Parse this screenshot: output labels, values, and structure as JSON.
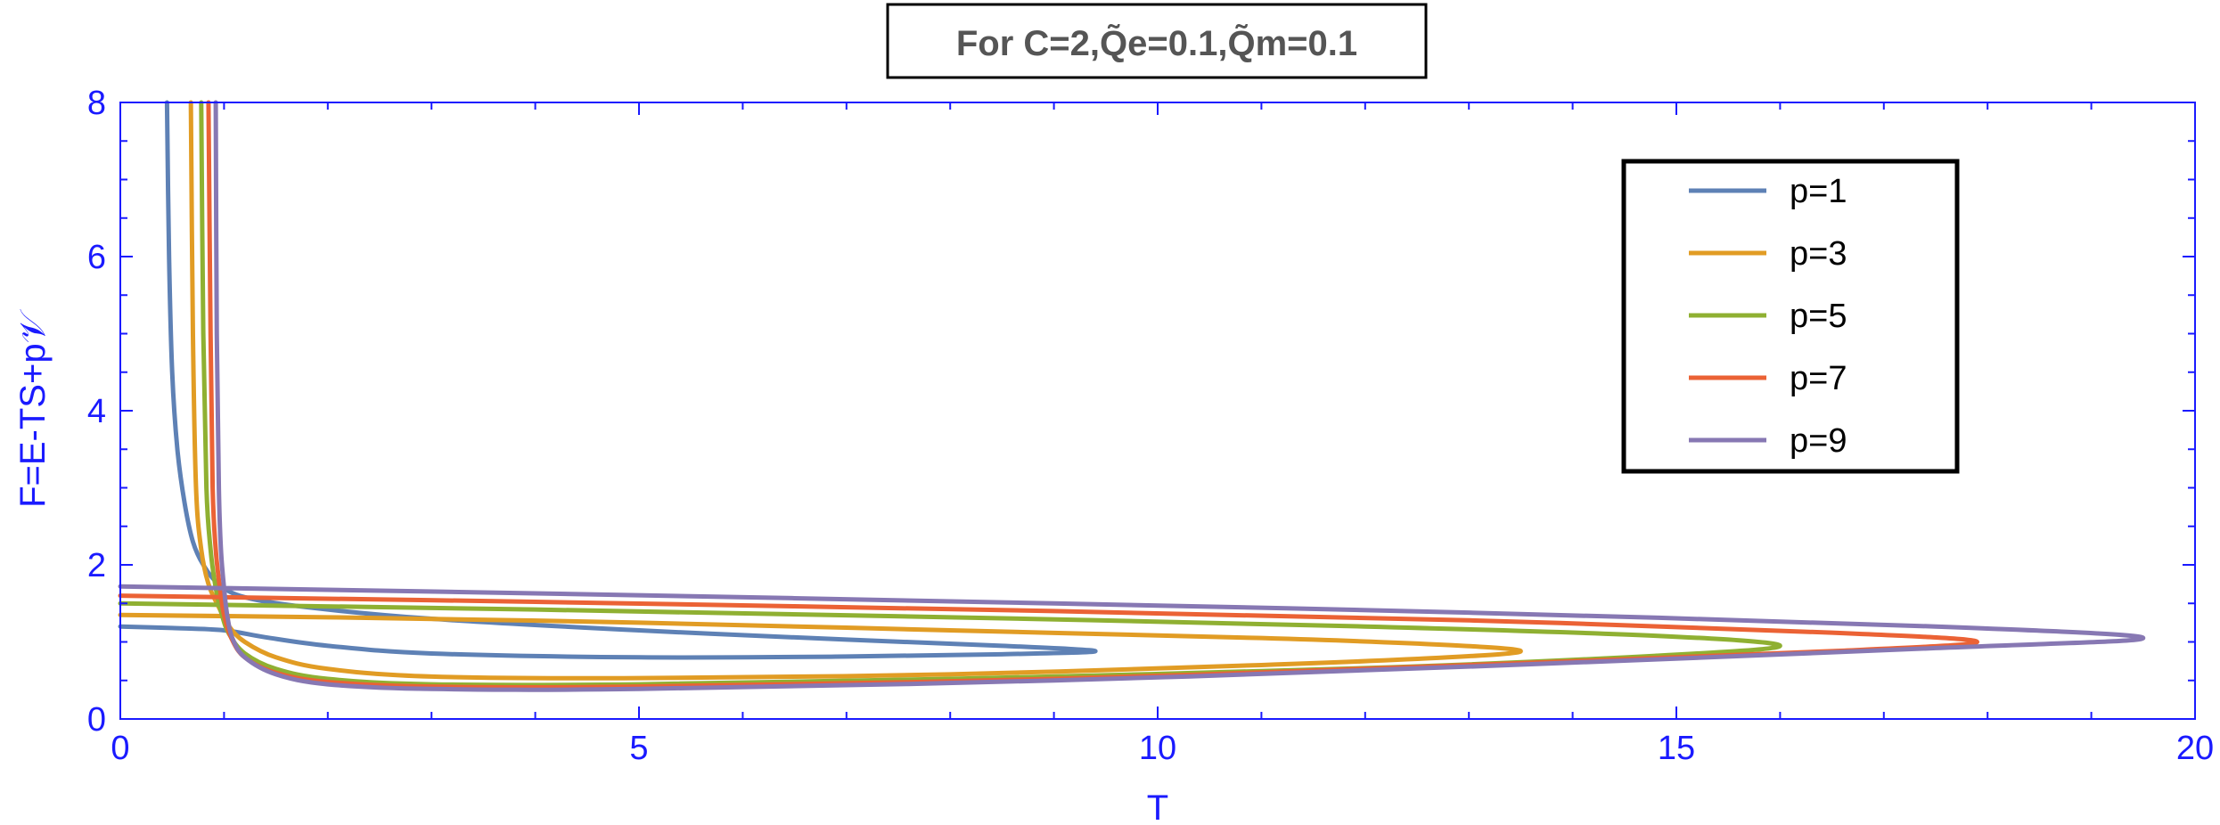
{
  "chart_data": {
    "type": "line",
    "title": "For C=2,Q̃e=0.1,Q̃m=0.1",
    "xlabel": "T",
    "ylabel": "F=E-TS+p𝒱",
    "xlim": [
      0,
      20
    ],
    "ylim": [
      0,
      8
    ],
    "xticks": [
      0,
      5,
      10,
      15,
      20
    ],
    "yticks": [
      0,
      2,
      4,
      6,
      8
    ],
    "legend_position": "top-right",
    "frame_color": "#1a1aff",
    "series": [
      {
        "name": "p=1",
        "color": "#5e81b5",
        "points": [
          [
            0.45,
            8.0
          ],
          [
            0.47,
            6.0
          ],
          [
            0.5,
            4.5
          ],
          [
            0.55,
            3.5
          ],
          [
            0.62,
            2.8
          ],
          [
            0.7,
            2.3
          ],
          [
            0.8,
            2.0
          ],
          [
            0.95,
            1.75
          ],
          [
            1.2,
            1.58
          ],
          [
            1.8,
            1.45
          ],
          [
            3.0,
            1.3
          ],
          [
            5.0,
            1.15
          ],
          [
            7.0,
            1.03
          ],
          [
            8.5,
            0.95
          ],
          [
            9.4,
            0.88
          ],
          [
            8.5,
            0.84
          ],
          [
            7.0,
            0.81
          ],
          [
            5.0,
            0.8
          ],
          [
            3.0,
            0.85
          ],
          [
            2.0,
            0.95
          ],
          [
            1.4,
            1.06
          ],
          [
            1.0,
            1.15
          ],
          [
            0.5,
            1.18
          ],
          [
            0.0,
            1.2
          ]
        ]
      },
      {
        "name": "p=3",
        "color": "#e19c24",
        "points": [
          [
            0.68,
            8.0
          ],
          [
            0.7,
            5.0
          ],
          [
            0.73,
            3.0
          ],
          [
            0.78,
            2.2
          ],
          [
            0.85,
            1.75
          ],
          [
            0.95,
            1.45
          ],
          [
            1.05,
            1.2
          ],
          [
            1.2,
            1.0
          ],
          [
            1.5,
            0.8
          ],
          [
            2.0,
            0.65
          ],
          [
            3.0,
            0.55
          ],
          [
            5.0,
            0.53
          ],
          [
            8.0,
            0.58
          ],
          [
            11.0,
            0.7
          ],
          [
            12.8,
            0.8
          ],
          [
            13.5,
            0.88
          ],
          [
            12.8,
            0.96
          ],
          [
            11.0,
            1.05
          ],
          [
            8.0,
            1.15
          ],
          [
            5.0,
            1.25
          ],
          [
            2.0,
            1.32
          ],
          [
            0.0,
            1.35
          ]
        ]
      },
      {
        "name": "p=5",
        "color": "#8fb032",
        "points": [
          [
            0.78,
            8.0
          ],
          [
            0.8,
            5.0
          ],
          [
            0.83,
            3.0
          ],
          [
            0.87,
            2.2
          ],
          [
            0.92,
            1.7
          ],
          [
            0.98,
            1.35
          ],
          [
            1.05,
            1.1
          ],
          [
            1.2,
            0.85
          ],
          [
            1.5,
            0.65
          ],
          [
            2.0,
            0.52
          ],
          [
            3.0,
            0.45
          ],
          [
            5.0,
            0.45
          ],
          [
            8.0,
            0.52
          ],
          [
            12.0,
            0.66
          ],
          [
            14.8,
            0.82
          ],
          [
            16.0,
            0.95
          ],
          [
            14.8,
            1.08
          ],
          [
            12.0,
            1.2
          ],
          [
            8.0,
            1.32
          ],
          [
            4.0,
            1.42
          ],
          [
            0.0,
            1.5
          ]
        ]
      },
      {
        "name": "p=7",
        "color": "#eb6235",
        "points": [
          [
            0.85,
            8.0
          ],
          [
            0.87,
            5.0
          ],
          [
            0.89,
            3.0
          ],
          [
            0.92,
            2.2
          ],
          [
            0.96,
            1.7
          ],
          [
            1.0,
            1.35
          ],
          [
            1.07,
            1.05
          ],
          [
            1.2,
            0.8
          ],
          [
            1.5,
            0.6
          ],
          [
            2.0,
            0.48
          ],
          [
            3.0,
            0.42
          ],
          [
            5.0,
            0.42
          ],
          [
            9.0,
            0.52
          ],
          [
            13.0,
            0.7
          ],
          [
            16.5,
            0.88
          ],
          [
            17.9,
            1.0
          ],
          [
            16.5,
            1.12
          ],
          [
            13.0,
            1.28
          ],
          [
            9.0,
            1.4
          ],
          [
            4.0,
            1.52
          ],
          [
            0.0,
            1.6
          ]
        ]
      },
      {
        "name": "p=9",
        "color": "#8778b3",
        "points": [
          [
            0.92,
            8.0
          ],
          [
            0.93,
            5.0
          ],
          [
            0.95,
            3.0
          ],
          [
            0.97,
            2.2
          ],
          [
            1.0,
            1.7
          ],
          [
            1.03,
            1.35
          ],
          [
            1.08,
            1.05
          ],
          [
            1.2,
            0.8
          ],
          [
            1.5,
            0.58
          ],
          [
            2.0,
            0.45
          ],
          [
            3.0,
            0.39
          ],
          [
            5.0,
            0.39
          ],
          [
            9.0,
            0.5
          ],
          [
            13.0,
            0.68
          ],
          [
            17.5,
            0.92
          ],
          [
            19.5,
            1.05
          ],
          [
            17.5,
            1.2
          ],
          [
            13.0,
            1.38
          ],
          [
            9.0,
            1.5
          ],
          [
            4.0,
            1.63
          ],
          [
            0.0,
            1.72
          ]
        ]
      }
    ]
  }
}
